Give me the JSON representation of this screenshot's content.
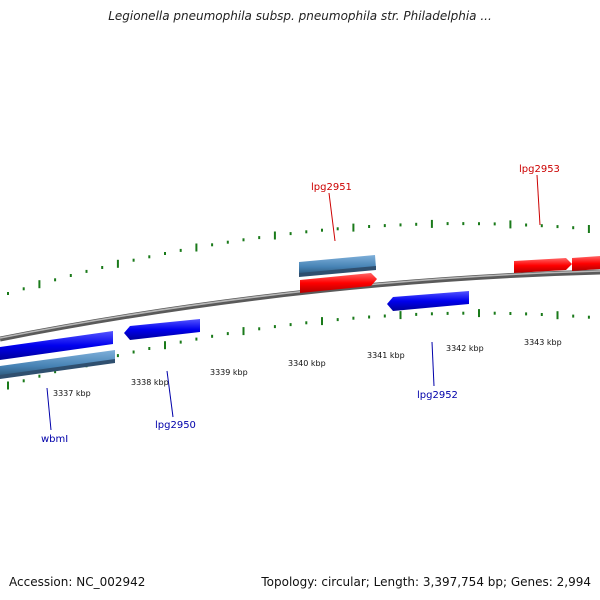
{
  "title": "Legionella pneumophila subsp. pneumophila str. Philadelphia ...",
  "footer": {
    "accession": "Accession: NC_002942",
    "summary": "Topology: circular; Length: 3,397,754 bp; Genes: 2,994"
  },
  "colors": {
    "forward_gene": "#ff0000",
    "reverse_gene": "#0000ee",
    "other_feature": "#4682b4",
    "backbone": "#888888",
    "ticks": "#1a7a1a",
    "reverse_label": "#0000aa",
    "forward_label": "#cc0000"
  },
  "kbp_ticks": [
    {
      "label": "3337 kbp"
    },
    {
      "label": "3338 kbp"
    },
    {
      "label": "3339 kbp"
    },
    {
      "label": "3340 kbp"
    },
    {
      "label": "3341 kbp"
    },
    {
      "label": "3342 kbp"
    },
    {
      "label": "3343 kbp"
    }
  ],
  "gene_labels": [
    {
      "name": "wbmI",
      "strand": "reverse"
    },
    {
      "name": "lpg2950",
      "strand": "reverse"
    },
    {
      "name": "lpg2951",
      "strand": "forward"
    },
    {
      "name": "lpg2952",
      "strand": "reverse"
    },
    {
      "name": "lpg2953",
      "strand": "forward"
    }
  ]
}
